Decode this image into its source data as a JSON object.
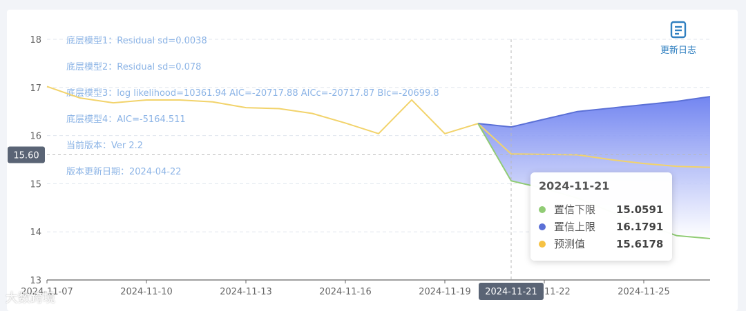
{
  "chart_data": {
    "type": "line",
    "x_ticks": [
      "2024-11-07",
      "2024-11-10",
      "2024-11-13",
      "2024-11-16",
      "2024-11-19",
      "2024-11-22",
      "2024-11-25"
    ],
    "ylim": [
      13,
      18
    ],
    "yticks": [
      13,
      14,
      15,
      16,
      17,
      18
    ],
    "grid": true,
    "series": [
      {
        "name": "预测值",
        "color": "#f2d36b",
        "points": [
          [
            "2024-11-07",
            17.02
          ],
          [
            "2024-11-08",
            16.78
          ],
          [
            "2024-11-09",
            16.68
          ],
          [
            "2024-11-10",
            16.74
          ],
          [
            "2024-11-11",
            16.74
          ],
          [
            "2024-11-12",
            16.7
          ],
          [
            "2024-11-13",
            16.58
          ],
          [
            "2024-11-14",
            16.56
          ],
          [
            "2024-11-15",
            16.46
          ],
          [
            "2024-11-16",
            16.26
          ],
          [
            "2024-11-17",
            16.04
          ],
          [
            "2024-11-18",
            16.74
          ],
          [
            "2024-11-19",
            16.04
          ],
          [
            "2024-11-20",
            16.25
          ],
          [
            "2024-11-21",
            15.6178
          ],
          [
            "2024-11-22",
            15.61
          ],
          [
            "2024-11-23",
            15.6
          ],
          [
            "2024-11-24",
            15.5
          ],
          [
            "2024-11-25",
            15.42
          ],
          [
            "2024-11-26",
            15.36
          ],
          [
            "2024-11-27",
            15.34
          ]
        ]
      },
      {
        "name": "置信上限",
        "color": "#5b70d6",
        "points": [
          [
            "2024-11-20",
            16.25
          ],
          [
            "2024-11-21",
            16.1791
          ],
          [
            "2024-11-22",
            16.34
          ],
          [
            "2024-11-23",
            16.5
          ],
          [
            "2024-11-24",
            16.57
          ],
          [
            "2024-11-25",
            16.64
          ],
          [
            "2024-11-26",
            16.71
          ],
          [
            "2024-11-27",
            16.81
          ]
        ]
      },
      {
        "name": "置信下限",
        "color": "#91cc75",
        "points": [
          [
            "2024-11-20",
            16.25
          ],
          [
            "2024-11-21",
            15.0591
          ],
          [
            "2024-11-22",
            14.9
          ],
          [
            "2024-11-23",
            14.7
          ],
          [
            "2024-11-24",
            14.42
          ],
          [
            "2024-11-25",
            14.16
          ],
          [
            "2024-11-26",
            13.92
          ],
          [
            "2024-11-27",
            13.86
          ]
        ]
      }
    ],
    "annotations": [
      "底层模型1：Residual sd=0.0038",
      "底层模型2：Residual sd=0.078",
      "底层模型3：log likelihood=10361.94 AIC=-20717.88 AICc=-20717.87 BIc=-20699.8",
      "底层模型4：AIC=-5164.511",
      "当前版本：Ver 2.2",
      "版本更新日期：2024-04-22"
    ],
    "crosshair": {
      "x": "2024-11-21",
      "x_label": "2024-11-21",
      "y": 15.6,
      "y_label": "15.60"
    }
  },
  "tooltip": {
    "date": "2024-11-21",
    "rows": [
      {
        "name": "置信下限",
        "value": "15.0591",
        "color": "#91cc75"
      },
      {
        "name": "置信上限",
        "value": "16.1791",
        "color": "#5b70d6"
      },
      {
        "name": "预测值",
        "value": "15.6178",
        "color": "#f6c244"
      }
    ]
  },
  "update_log": {
    "label": "更新日志",
    "icon": "document-icon"
  },
  "watermark": "大数跨境",
  "colors": {
    "band_top": "#6b7ff0",
    "axis": "#666666",
    "grid": "#e0e6ee",
    "annotation": "#8cb4e6"
  }
}
